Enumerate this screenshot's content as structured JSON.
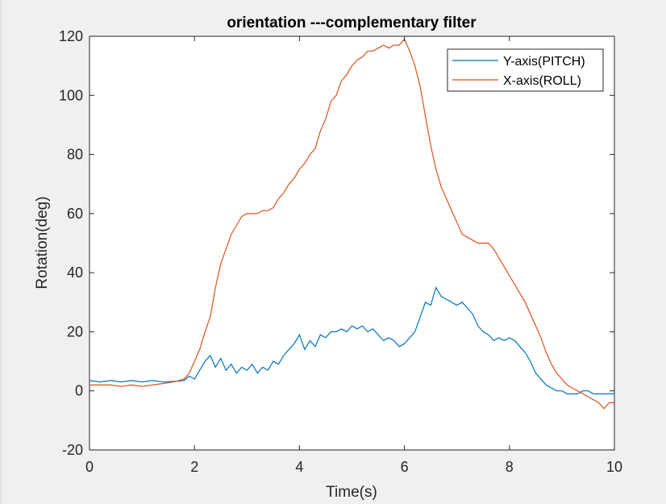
{
  "window": {
    "background": "#f0f0f0"
  },
  "chart_data": {
    "type": "line",
    "title": "orientation ---complementary filter",
    "xlabel": "Time(s)",
    "ylabel": "Rotation(deg)",
    "xlim": [
      0,
      10
    ],
    "ylim": [
      -20,
      120
    ],
    "xticks": [
      0,
      2,
      4,
      6,
      8,
      10
    ],
    "yticks": [
      -20,
      0,
      20,
      40,
      60,
      80,
      100,
      120
    ],
    "grid": false,
    "legend_position": "top-right",
    "series": [
      {
        "name": "Y-axis(PITCH)",
        "color": "#0072bd",
        "x": [
          0,
          0.2,
          0.4,
          0.6,
          0.8,
          1.0,
          1.2,
          1.4,
          1.6,
          1.8,
          1.9,
          2.0,
          2.1,
          2.2,
          2.3,
          2.4,
          2.5,
          2.6,
          2.7,
          2.8,
          2.9,
          3.0,
          3.1,
          3.2,
          3.3,
          3.4,
          3.5,
          3.6,
          3.7,
          3.8,
          3.9,
          4.0,
          4.1,
          4.2,
          4.3,
          4.4,
          4.5,
          4.6,
          4.7,
          4.8,
          4.9,
          5.0,
          5.1,
          5.2,
          5.3,
          5.4,
          5.5,
          5.6,
          5.7,
          5.8,
          5.9,
          6.0,
          6.1,
          6.2,
          6.3,
          6.4,
          6.5,
          6.6,
          6.7,
          6.8,
          6.9,
          7.0,
          7.1,
          7.2,
          7.3,
          7.4,
          7.5,
          7.6,
          7.7,
          7.8,
          7.9,
          8.0,
          8.1,
          8.2,
          8.3,
          8.4,
          8.5,
          8.6,
          8.7,
          8.8,
          8.9,
          9.0,
          9.1,
          9.2,
          9.3,
          9.4,
          9.5,
          9.6,
          9.7,
          9.8,
          9.9,
          10.0
        ],
        "y": [
          3.5,
          3,
          3.5,
          3,
          3.5,
          3,
          3.5,
          3,
          3.2,
          3.5,
          5,
          4,
          7,
          10,
          12,
          8,
          11,
          7,
          9,
          6,
          8,
          7,
          9,
          6,
          8,
          7,
          10,
          9,
          12,
          14,
          16,
          19,
          14,
          17,
          15,
          19,
          18,
          20,
          20,
          21,
          20,
          22,
          21,
          22,
          20,
          21,
          19,
          17,
          18,
          17,
          15,
          16,
          18,
          20,
          25,
          30,
          29,
          35,
          32,
          31,
          30,
          29,
          30,
          28,
          26,
          22,
          20,
          19,
          17,
          18,
          17,
          18,
          17,
          15,
          13,
          10,
          6,
          4,
          2,
          1,
          0,
          0,
          -1,
          -1,
          -1,
          0,
          0,
          -1,
          -1,
          -1,
          -1,
          -1
        ]
      },
      {
        "name": "X-axis(ROLL)",
        "color": "#d95319",
        "x": [
          0,
          0.2,
          0.4,
          0.6,
          0.8,
          1.0,
          1.2,
          1.4,
          1.6,
          1.8,
          1.9,
          2.0,
          2.1,
          2.2,
          2.3,
          2.4,
          2.5,
          2.6,
          2.7,
          2.8,
          2.9,
          3.0,
          3.1,
          3.2,
          3.3,
          3.4,
          3.5,
          3.6,
          3.7,
          3.8,
          3.9,
          4.0,
          4.1,
          4.2,
          4.3,
          4.4,
          4.5,
          4.6,
          4.7,
          4.8,
          4.9,
          5.0,
          5.1,
          5.2,
          5.3,
          5.4,
          5.5,
          5.6,
          5.7,
          5.8,
          5.9,
          6.0,
          6.1,
          6.2,
          6.3,
          6.4,
          6.5,
          6.6,
          6.7,
          6.8,
          6.9,
          7.0,
          7.1,
          7.2,
          7.3,
          7.4,
          7.5,
          7.6,
          7.7,
          7.8,
          7.9,
          8.0,
          8.1,
          8.2,
          8.3,
          8.4,
          8.5,
          8.6,
          8.7,
          8.8,
          8.9,
          9.0,
          9.1,
          9.2,
          9.3,
          9.4,
          9.5,
          9.6,
          9.7,
          9.8,
          9.9,
          10.0
        ],
        "y": [
          2,
          2,
          2,
          1.5,
          2,
          1.5,
          2,
          2.5,
          3,
          4,
          6,
          10,
          14,
          20,
          25,
          35,
          43,
          48,
          53,
          56,
          59,
          60,
          60,
          60,
          61,
          61,
          62,
          65,
          67,
          70,
          72,
          75,
          77,
          80,
          82,
          88,
          92,
          98,
          100,
          105,
          107,
          110,
          112,
          113,
          115,
          115,
          116,
          117,
          116,
          117,
          117,
          119,
          115,
          110,
          103,
          93,
          83,
          75,
          69,
          65,
          61,
          57,
          53,
          52,
          51,
          50,
          50,
          50,
          48,
          45,
          42,
          39,
          36,
          33,
          30,
          26,
          22,
          18,
          13,
          9,
          6,
          4,
          2,
          1,
          0,
          -1,
          -2,
          -3,
          -4,
          -6,
          -4,
          -4
        ]
      }
    ]
  }
}
